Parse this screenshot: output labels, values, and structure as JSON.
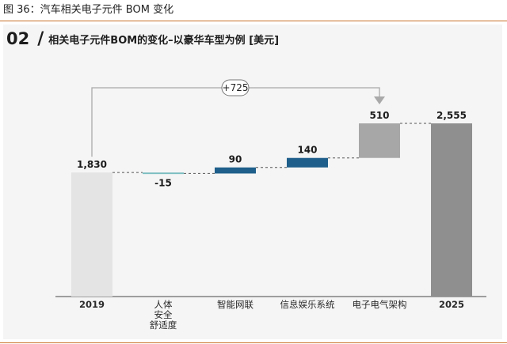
{
  "figure_caption": "图 36：汽车相关电子元件 BOM 变化",
  "header": {
    "number": "02",
    "slash": "/",
    "title": "相关电子元件BOM的变化–以豪华车型为例 [美元]"
  },
  "colors": {
    "total_start": "#e4e4e4",
    "total_end": "#8f8f8f",
    "increase": "#1f5f8b",
    "decrease": "#7dbfc2",
    "electrical": "#a7a7a7",
    "bracket": "#a9a9a9",
    "accent_rule": "#c9742a"
  },
  "chart_data": {
    "type": "waterfall",
    "title": "",
    "ylim": [
      0,
      3000
    ],
    "categories": [
      [
        "2019"
      ],
      [
        "人体",
        "安全",
        "舒适度"
      ],
      [
        "智能网联"
      ],
      [
        "信息娱乐系统"
      ],
      [
        "电子电气架构"
      ],
      [
        "2025"
      ]
    ],
    "steps": [
      {
        "kind": "total",
        "value": 1830,
        "label": "1,830"
      },
      {
        "kind": "delta",
        "value": -15,
        "label": "-15"
      },
      {
        "kind": "delta",
        "value": 90,
        "label": "90"
      },
      {
        "kind": "delta",
        "value": 140,
        "label": "140"
      },
      {
        "kind": "delta",
        "value": 510,
        "label": "510"
      },
      {
        "kind": "total",
        "value": 2555,
        "label": "2,555"
      }
    ],
    "annotation": {
      "text": "+725",
      "from_step": 0,
      "to_step": 4
    }
  }
}
